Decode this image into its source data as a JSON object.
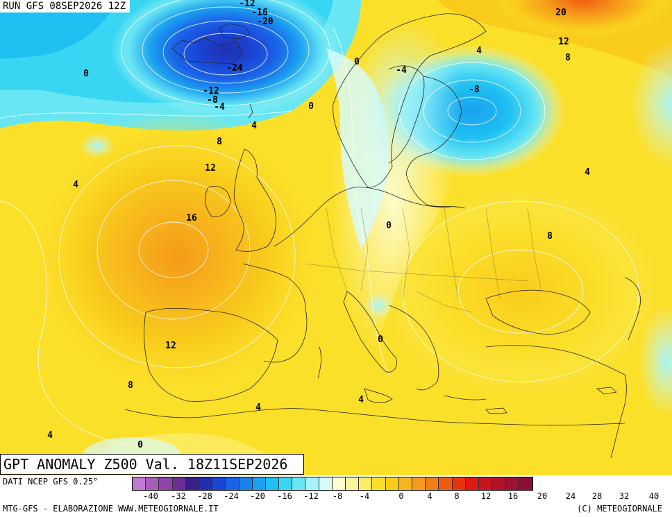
{
  "header": {
    "run_label": "RUN GFS 08SEP2026 12Z"
  },
  "map": {
    "title": "GPT ANOMALY Z500 Val. 18Z11SEP2026",
    "contour_labels": [
      {
        "text": "-12"
      },
      {
        "text": "-16"
      },
      {
        "text": "-20"
      },
      {
        "text": "-24"
      },
      {
        "text": "-12"
      },
      {
        "text": "-8"
      },
      {
        "text": "-4"
      },
      {
        "text": "0"
      },
      {
        "text": "0"
      },
      {
        "text": "0"
      },
      {
        "text": "-4"
      },
      {
        "text": "-8"
      },
      {
        "text": "20"
      },
      {
        "text": "12"
      },
      {
        "text": "8"
      },
      {
        "text": "4"
      },
      {
        "text": "4"
      },
      {
        "text": "8"
      },
      {
        "text": "12"
      },
      {
        "text": "4"
      },
      {
        "text": "16"
      },
      {
        "text": "4"
      },
      {
        "text": "0"
      },
      {
        "text": "8"
      },
      {
        "text": "0"
      },
      {
        "text": "12"
      },
      {
        "text": "8"
      },
      {
        "text": "4"
      },
      {
        "text": "4"
      },
      {
        "text": "4"
      },
      {
        "text": "0"
      }
    ]
  },
  "legend": {
    "source": "DATI NCEP GFS 0.25°",
    "colors": [
      "#c07ad0",
      "#a85cbc",
      "#8d45a8",
      "#6a2f92",
      "#3a1f8a",
      "#1f2fb0",
      "#1a45d6",
      "#1a63e8",
      "#1a82ee",
      "#1aa0f0",
      "#1ec0f2",
      "#38d6f2",
      "#68e6f4",
      "#a6f2f6",
      "#d8faf8",
      "#fdfccc",
      "#fbf49a",
      "#fbec60",
      "#fbe02a",
      "#f9cc1c",
      "#f7b41c",
      "#f59a1a",
      "#f27e16",
      "#ee5c12",
      "#e8340e",
      "#dc1a14",
      "#c8141e",
      "#b41228",
      "#a01030",
      "#8c0e36"
    ],
    "ticks": [
      "-40",
      "-32",
      "-28",
      "-24",
      "-20",
      "-16",
      "-12",
      "-8",
      "-4",
      "0",
      "4",
      "8",
      "12",
      "16",
      "20",
      "24",
      "28",
      "32",
      "40"
    ],
    "credit_left": "MTG-GFS - ELABORAZIONE WWW.METEOGIORNALE.IT",
    "credit_right": "(C) METEOGIORNALE"
  }
}
